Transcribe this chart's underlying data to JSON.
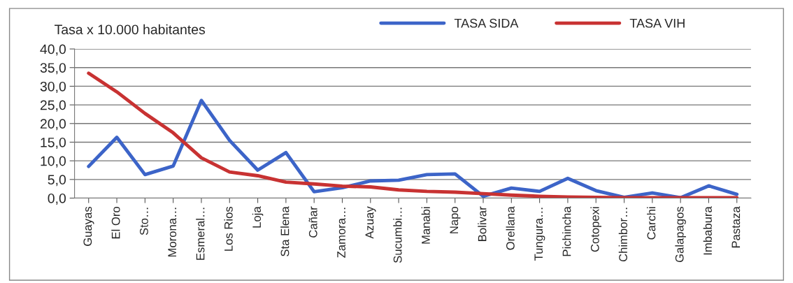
{
  "chart_data": {
    "type": "line",
    "ylabel": "Tasa x 10.000 habitantes",
    "categories": [
      "Guayas",
      "El Oro",
      "Sto…",
      "Morona…",
      "Esmeral…",
      "Los Rios",
      "Loja",
      "Sta Elena",
      "Cañar",
      "Zamora…",
      "Azuay",
      "Sucumbi…",
      "Manabi",
      "Napo",
      "Bolivar",
      "Orellana",
      "Tungura…",
      "Pichincha",
      "Cotopexi",
      "Chimbor…",
      "Carchi",
      "Galapagos",
      "Imbabura",
      "Pastaza"
    ],
    "series": [
      {
        "name": "TASA SIDA",
        "color": "#3c64c8",
        "values": [
          8.5,
          16.3,
          6.3,
          8.6,
          26.2,
          15.5,
          7.5,
          12.2,
          1.7,
          2.8,
          4.6,
          4.8,
          6.3,
          6.5,
          0.5,
          2.7,
          1.8,
          5.3,
          2.0,
          0.2,
          1.4,
          0.1,
          3.3,
          1.0
        ]
      },
      {
        "name": "TASA VIH",
        "color": "#c83232",
        "values": [
          33.5,
          28.5,
          22.7,
          17.5,
          10.8,
          7.0,
          6.0,
          4.3,
          3.8,
          3.2,
          3.0,
          2.2,
          1.8,
          1.6,
          1.2,
          0.8,
          0.5,
          0.3,
          0.2,
          0.1,
          0.1,
          0.1,
          0.1,
          0.1
        ]
      }
    ],
    "ylim": [
      0,
      40
    ],
    "yticks": [
      {
        "value": 0,
        "label": "0,0"
      },
      {
        "value": 5,
        "label": "5,0"
      },
      {
        "value": 10,
        "label": "10,0"
      },
      {
        "value": 15,
        "label": "15,0"
      },
      {
        "value": 20,
        "label": "20,0"
      },
      {
        "value": 25,
        "label": "25,0"
      },
      {
        "value": 30,
        "label": "30,0"
      },
      {
        "value": 35,
        "label": "35,0"
      },
      {
        "value": 40,
        "label": "40,0"
      }
    ],
    "grid": "y",
    "legend": "top right",
    "marker": "none",
    "line_style": "solid"
  }
}
